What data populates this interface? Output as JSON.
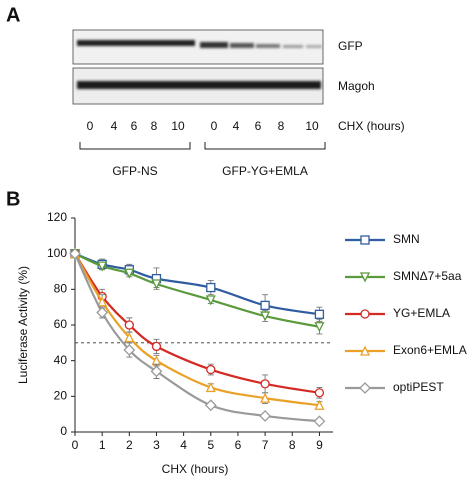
{
  "panel_a": {
    "label": "A",
    "blots": [
      "GFP",
      "Magoh"
    ],
    "lanes": [
      "0",
      "4",
      "6",
      "8",
      "10",
      "0",
      "4",
      "6",
      "8",
      "10"
    ],
    "lane_axis": "CHX (hours)",
    "groups": [
      "GFP-NS",
      "GFP-YG+EMLA"
    ]
  },
  "chart_data": {
    "type": "line",
    "panel_label": "B",
    "x_label": "CHX (hours)",
    "y_label": "Luciferase Activity (%)",
    "x": [
      0,
      1,
      2,
      3,
      5,
      7,
      9
    ],
    "xlim": [
      0,
      9.5
    ],
    "xticks": [
      0,
      1,
      2,
      3,
      4,
      5,
      6,
      7,
      8,
      9
    ],
    "ylim": [
      0,
      120
    ],
    "yticks": [
      0,
      20,
      40,
      60,
      80,
      100,
      120
    ],
    "reference_line": 50,
    "series": [
      {
        "name": "SMN",
        "color": "#2f5d9f",
        "marker": "square",
        "values": [
          100,
          94,
          91,
          86,
          81,
          71,
          66
        ],
        "errors": [
          0,
          3,
          3,
          6,
          4,
          6,
          4
        ]
      },
      {
        "name": "SMNΔ7+5aa",
        "color": "#5b9a3c",
        "marker": "triangle-down",
        "values": [
          100,
          93,
          89,
          83,
          74,
          65,
          59
        ],
        "errors": [
          0,
          2,
          2,
          2,
          2,
          3,
          4
        ]
      },
      {
        "name": "YG+EMLA",
        "color": "#d42a23",
        "marker": "circle",
        "values": [
          100,
          76,
          60,
          48,
          35,
          27,
          22
        ],
        "errors": [
          0,
          4,
          4,
          4,
          3,
          5,
          3
        ]
      },
      {
        "name": "Exon6+EMLA",
        "color": "#e9a127",
        "marker": "triangle-up",
        "values": [
          100,
          73,
          53,
          40,
          25,
          19,
          15
        ],
        "errors": [
          0,
          4,
          3,
          3,
          2,
          3,
          2
        ]
      },
      {
        "name": "optiPEST",
        "color": "#9a9a9a",
        "marker": "diamond",
        "values": [
          100,
          67,
          46,
          34,
          15,
          9,
          6
        ],
        "errors": [
          0,
          3,
          4,
          4,
          1,
          1,
          1
        ]
      }
    ]
  }
}
